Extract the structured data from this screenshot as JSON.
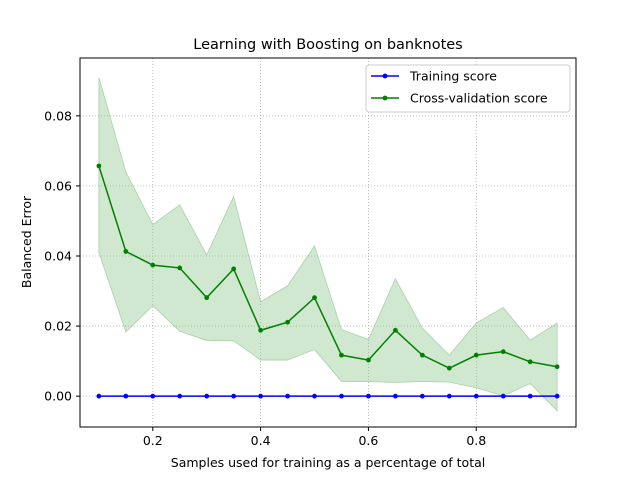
{
  "chart_data": {
    "type": "line",
    "title": "Learning with Boosting on banknotes",
    "xlabel": "Samples used for training as a percentage of total",
    "ylabel": "Balanced Error",
    "xlim": [
      0.065,
      0.985
    ],
    "ylim": [
      -0.0088,
      0.0965
    ],
    "xticks": [
      0.2,
      0.4,
      0.6,
      0.8
    ],
    "xtick_labels": [
      "0.2",
      "0.4",
      "0.6",
      "0.8"
    ],
    "yticks": [
      0.0,
      0.02,
      0.04,
      0.06,
      0.08
    ],
    "ytick_labels": [
      "0.00",
      "0.02",
      "0.04",
      "0.06",
      "0.08"
    ],
    "grid": true,
    "legend_position": "top-right",
    "x": [
      0.1,
      0.15,
      0.2,
      0.25,
      0.3,
      0.35,
      0.4,
      0.45,
      0.5,
      0.55,
      0.6,
      0.65,
      0.7,
      0.75,
      0.8,
      0.85,
      0.9,
      0.95
    ],
    "series": [
      {
        "name": "Training score",
        "color": "#0000ff",
        "values": [
          0,
          0,
          0,
          0,
          0,
          0,
          0,
          0,
          0,
          0,
          0,
          0,
          0,
          0,
          0,
          0,
          0,
          0
        ]
      },
      {
        "name": "Cross-validation score",
        "color": "#008000",
        "band_color": "#7fbf7f",
        "values": [
          0.0657,
          0.0413,
          0.0374,
          0.0366,
          0.0281,
          0.0363,
          0.0188,
          0.0211,
          0.0281,
          0.0117,
          0.0103,
          0.0188,
          0.0117,
          0.008,
          0.0117,
          0.0127,
          0.0098,
          0.0084
        ],
        "upper": [
          0.091,
          0.064,
          0.049,
          0.0546,
          0.0403,
          0.057,
          0.0269,
          0.0315,
          0.0429,
          0.019,
          0.0162,
          0.0335,
          0.0194,
          0.0117,
          0.0209,
          0.0253,
          0.016,
          0.0209
        ],
        "lower": [
          0.041,
          0.0183,
          0.0258,
          0.0185,
          0.0159,
          0.0158,
          0.0103,
          0.0103,
          0.0133,
          0.0042,
          0.0042,
          0.0039,
          0.0042,
          0.004,
          0.0024,
          0.0001,
          0.0036,
          -0.0042
        ]
      }
    ]
  }
}
